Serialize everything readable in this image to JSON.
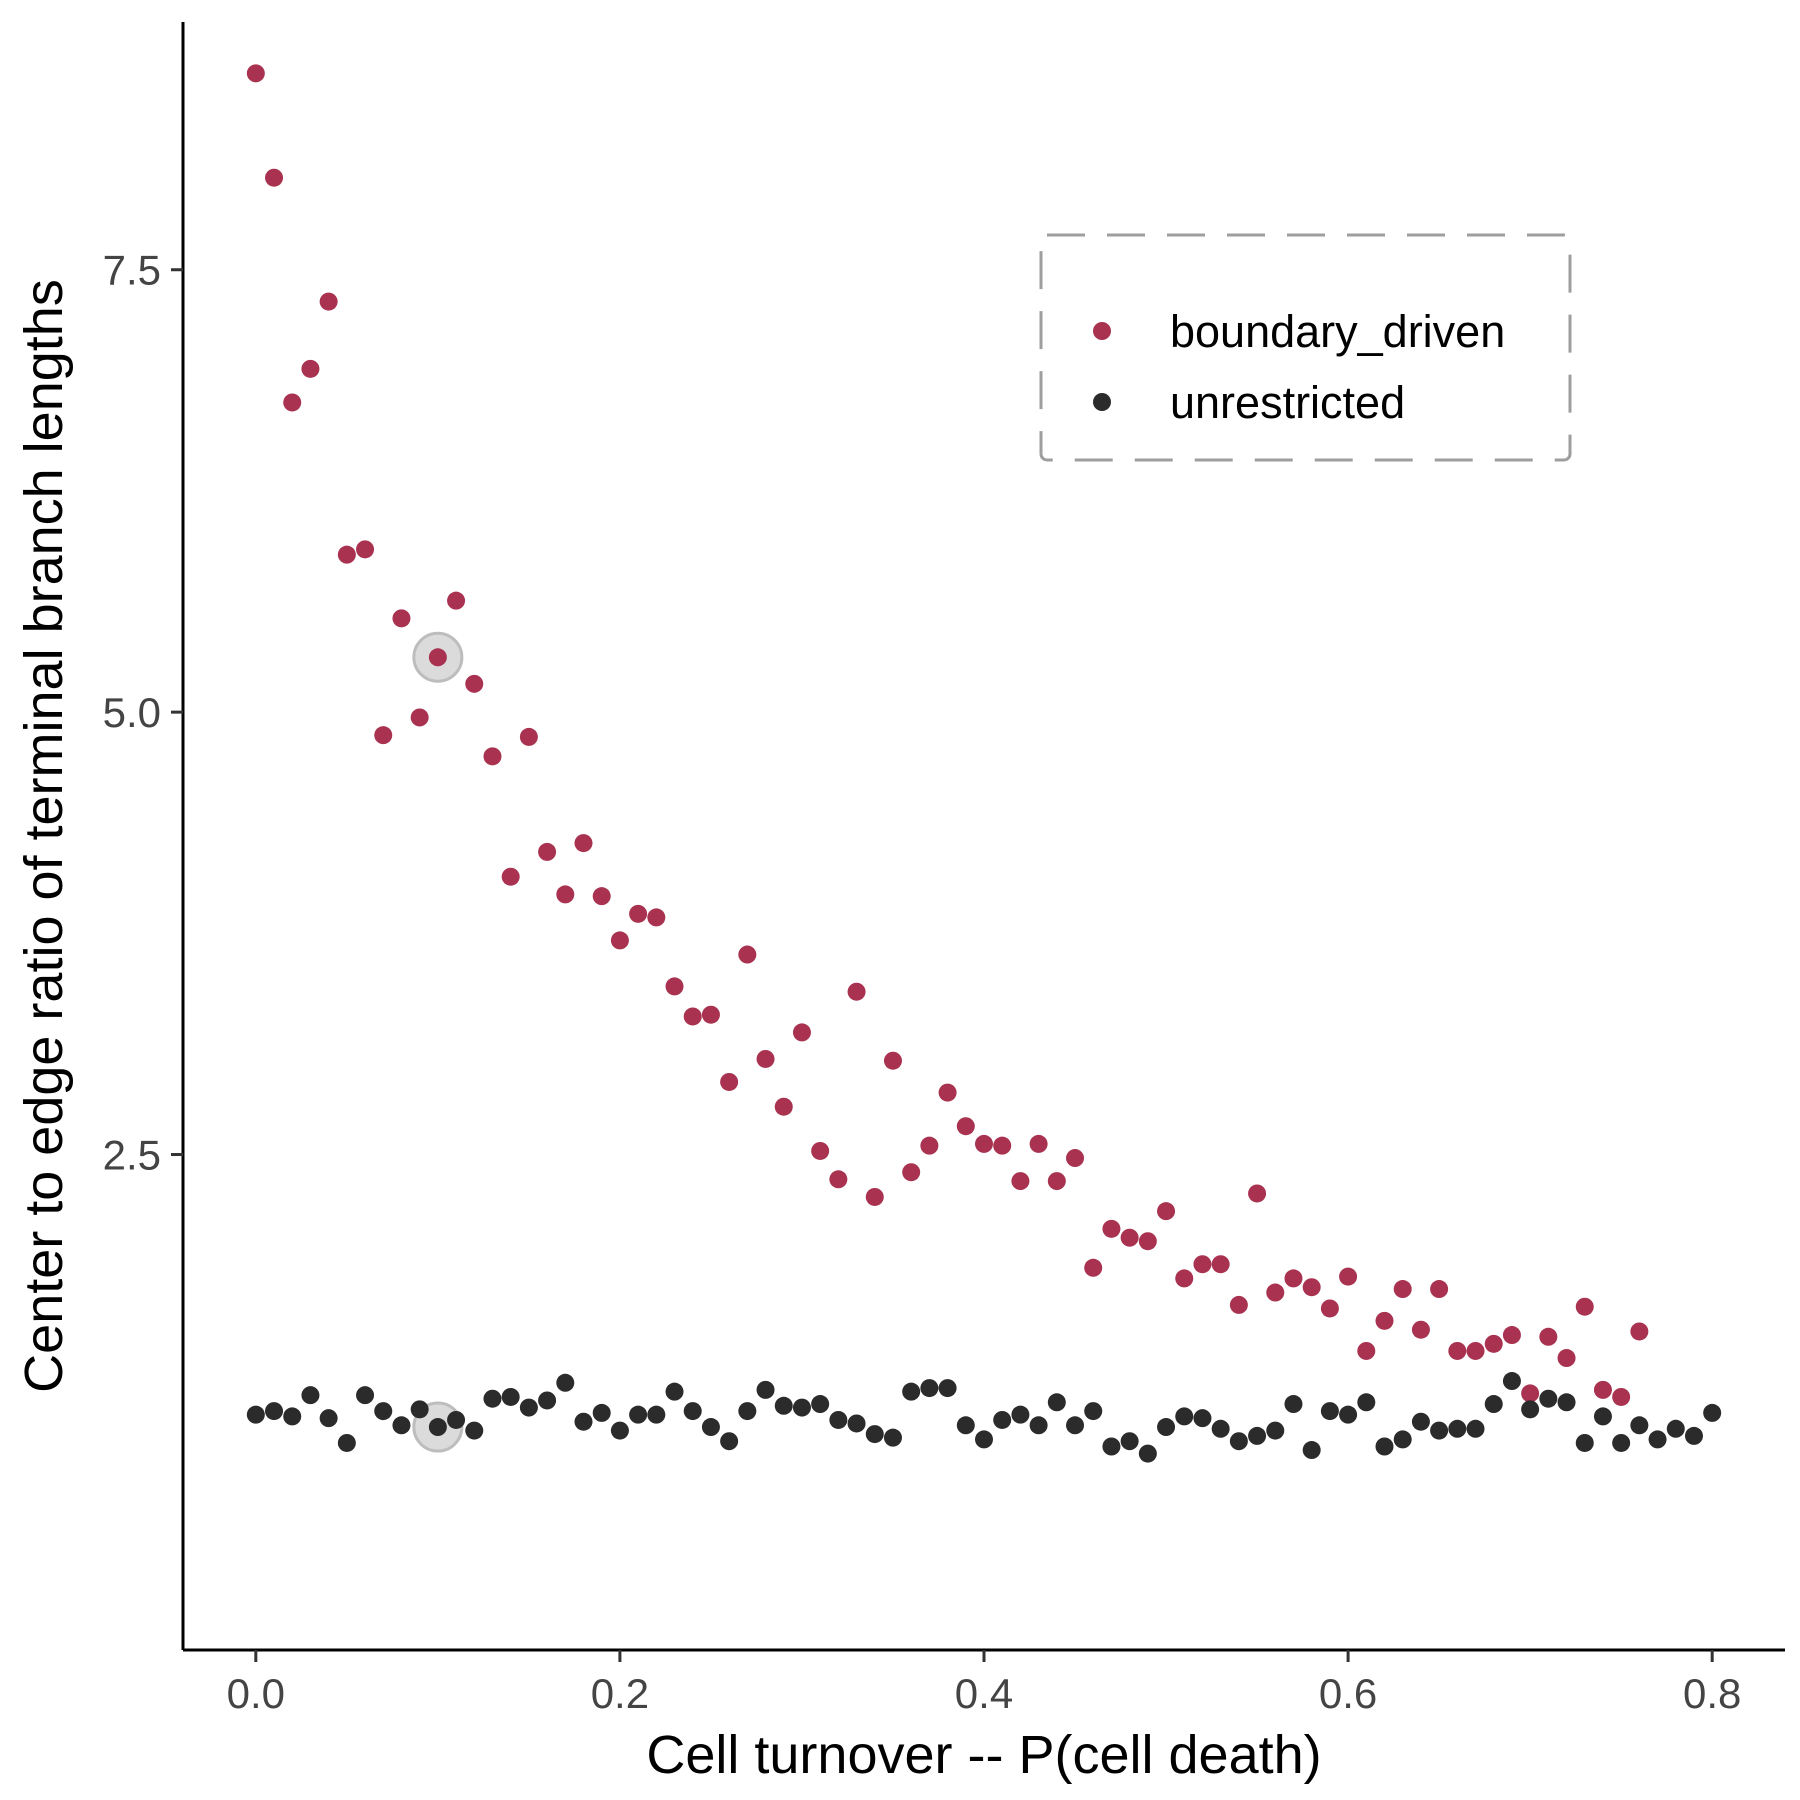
{
  "chart_data": {
    "type": "scatter",
    "xlabel": "Cell turnover -- P(cell death)",
    "ylabel": "Center to edge ratio of terminal branch lengths",
    "xlim": [
      -0.04,
      0.84
    ],
    "ylim": [
      -0.3,
      8.9
    ],
    "xticks": [
      0.0,
      0.2,
      0.4,
      0.6,
      0.8
    ],
    "xtick_labels": [
      "0.0",
      "0.2",
      "0.4",
      "0.6",
      "0.8"
    ],
    "yticks": [
      2.5,
      5.0,
      7.5
    ],
    "ytick_labels": [
      "2.5",
      "5.0",
      "7.5"
    ],
    "grid": false,
    "legend_position": "top-right",
    "legend_border": "dashed",
    "highlight": {
      "x": 0.1,
      "color": "#bdbdbd"
    },
    "series": [
      {
        "name": "boundary_driven",
        "color": "#a83250",
        "x": [
          0.0,
          0.01,
          0.02,
          0.03,
          0.04,
          0.05,
          0.06,
          0.07,
          0.08,
          0.09,
          0.1,
          0.11,
          0.12,
          0.13,
          0.14,
          0.15,
          0.16,
          0.17,
          0.18,
          0.19,
          0.2,
          0.21,
          0.22,
          0.23,
          0.24,
          0.25,
          0.26,
          0.27,
          0.28,
          0.29,
          0.3,
          0.31,
          0.32,
          0.33,
          0.34,
          0.35,
          0.36,
          0.37,
          0.38,
          0.39,
          0.4,
          0.41,
          0.42,
          0.43,
          0.44,
          0.45,
          0.46,
          0.47,
          0.48,
          0.49,
          0.5,
          0.51,
          0.52,
          0.53,
          0.54,
          0.55,
          0.56,
          0.57,
          0.58,
          0.59,
          0.6,
          0.61,
          0.62,
          0.63,
          0.64,
          0.65,
          0.66,
          0.67,
          0.68,
          0.69,
          0.7,
          0.71,
          0.72,
          0.73,
          0.74,
          0.75,
          0.76
        ],
        "y": [
          8.61,
          8.02,
          6.75,
          6.94,
          7.32,
          5.89,
          5.92,
          4.87,
          5.53,
          4.97,
          5.31,
          5.63,
          5.16,
          4.75,
          4.07,
          4.86,
          4.21,
          3.97,
          4.26,
          3.96,
          3.71,
          3.86,
          3.84,
          3.45,
          3.28,
          3.29,
          2.91,
          3.63,
          3.04,
          2.77,
          3.19,
          2.52,
          2.36,
          3.42,
          2.26,
          3.03,
          2.4,
          2.55,
          2.85,
          2.66,
          2.56,
          2.55,
          2.35,
          2.56,
          2.35,
          2.48,
          1.86,
          2.08,
          2.03,
          2.01,
          2.18,
          1.8,
          1.88,
          1.88,
          1.65,
          2.28,
          1.72,
          1.8,
          1.75,
          1.63,
          1.81,
          1.39,
          1.56,
          1.74,
          1.51,
          1.74,
          1.39,
          1.39,
          1.43,
          1.48,
          1.15,
          1.47,
          1.35,
          1.64,
          1.17,
          1.13,
          1.5
        ]
      },
      {
        "name": "unrestricted",
        "color": "#2b2b2b",
        "x": [
          0.0,
          0.01,
          0.02,
          0.03,
          0.04,
          0.05,
          0.06,
          0.07,
          0.08,
          0.09,
          0.1,
          0.11,
          0.12,
          0.13,
          0.14,
          0.15,
          0.16,
          0.17,
          0.18,
          0.19,
          0.2,
          0.21,
          0.22,
          0.23,
          0.24,
          0.25,
          0.26,
          0.27,
          0.28,
          0.29,
          0.3,
          0.31,
          0.32,
          0.33,
          0.34,
          0.35,
          0.36,
          0.37,
          0.38,
          0.39,
          0.4,
          0.41,
          0.42,
          0.43,
          0.44,
          0.45,
          0.46,
          0.47,
          0.48,
          0.49,
          0.5,
          0.51,
          0.52,
          0.53,
          0.54,
          0.55,
          0.56,
          0.57,
          0.58,
          0.59,
          0.6,
          0.61,
          0.62,
          0.63,
          0.64,
          0.65,
          0.66,
          0.67,
          0.68,
          0.69,
          0.7,
          0.71,
          0.72,
          0.73,
          0.74,
          0.75,
          0.76,
          0.77,
          0.78,
          0.79,
          0.8
        ],
        "y": [
          1.03,
          1.05,
          1.02,
          1.14,
          1.01,
          0.87,
          1.14,
          1.05,
          0.97,
          1.06,
          0.96,
          1.0,
          0.94,
          1.12,
          1.13,
          1.07,
          1.11,
          1.21,
          0.99,
          1.04,
          0.94,
          1.03,
          1.03,
          1.16,
          1.05,
          0.96,
          0.88,
          1.05,
          1.17,
          1.08,
          1.07,
          1.09,
          1.0,
          0.98,
          0.92,
          0.9,
          1.16,
          1.18,
          1.18,
          0.97,
          0.89,
          1.0,
          1.03,
          0.97,
          1.1,
          0.97,
          1.05,
          0.85,
          0.88,
          0.81,
          0.96,
          1.02,
          1.01,
          0.95,
          0.88,
          0.91,
          0.94,
          1.09,
          0.83,
          1.05,
          1.03,
          1.1,
          0.85,
          0.89,
          0.99,
          0.94,
          0.95,
          0.95,
          1.09,
          1.22,
          1.06,
          1.12,
          1.1,
          0.87,
          1.02,
          0.87,
          0.97,
          0.89,
          0.95,
          0.91,
          1.04
        ]
      }
    ]
  }
}
